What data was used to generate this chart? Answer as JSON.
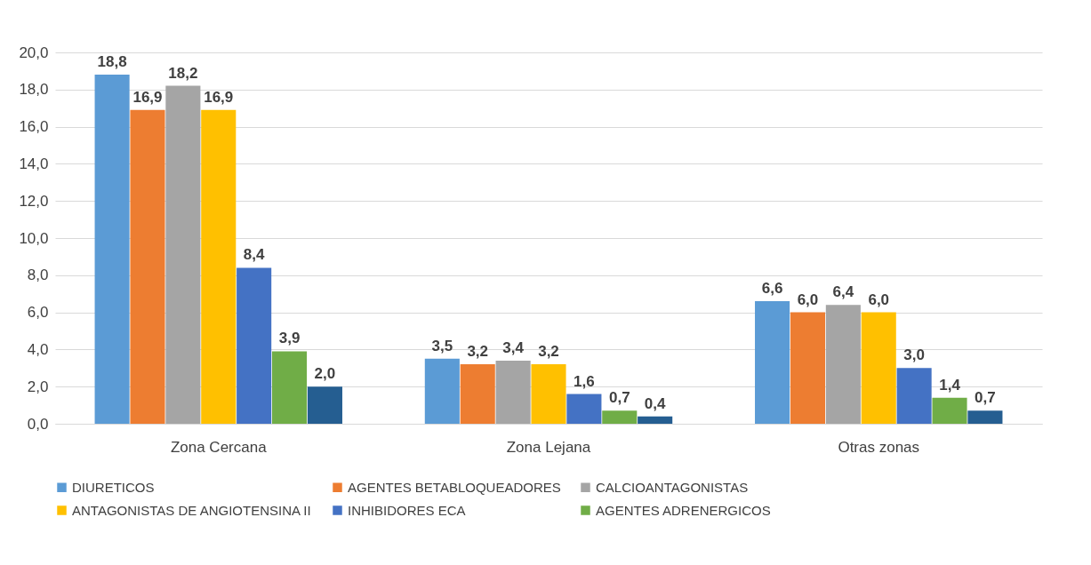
{
  "chart_data": {
    "type": "bar",
    "categories": [
      "Zona Cercana",
      "Zona Lejana",
      "Otras zonas"
    ],
    "series": [
      {
        "name": "DIURETICOS",
        "color": "#5b9bd5",
        "values": [
          18.8,
          3.5,
          6.6
        ],
        "value_labels": [
          "18,8",
          "3,5",
          "6,6"
        ]
      },
      {
        "name": "AGENTES BETABLOQUEADORES",
        "color": "#ed7d31",
        "values": [
          16.9,
          3.2,
          6.0
        ],
        "value_labels": [
          "16,9",
          "3,2",
          "6,0"
        ]
      },
      {
        "name": "CALCIOANTAGONISTAS",
        "color": "#a5a5a5",
        "values": [
          18.2,
          3.4,
          6.4
        ],
        "value_labels": [
          "18,2",
          "3,4",
          "6,4"
        ]
      },
      {
        "name": "ANTAGONISTAS DE ANGIOTENSINA II",
        "color": "#ffc000",
        "values": [
          16.9,
          3.2,
          6.0
        ],
        "value_labels": [
          "16,9",
          "3,2",
          "6,0"
        ]
      },
      {
        "name": "INHIBIDORES ECA",
        "color": "#4472c4",
        "values": [
          8.4,
          1.6,
          3.0
        ],
        "value_labels": [
          "8,4",
          "1,6",
          "3,0"
        ]
      },
      {
        "name": "AGENTES ADRENERGICOS",
        "color": "#70ad47",
        "values": [
          3.9,
          0.7,
          1.4
        ],
        "value_labels": [
          "3,9",
          "0,7",
          "1,4"
        ]
      },
      {
        "color": "#255e91",
        "values": [
          2.0,
          0.4,
          0.7
        ],
        "value_labels": [
          "2,0",
          "0,4",
          "0,7"
        ]
      }
    ],
    "ylim": [
      0,
      20
    ],
    "yticks": [
      {
        "value": 0,
        "label": "0,0"
      },
      {
        "value": 2,
        "label": "2,0"
      },
      {
        "value": 4,
        "label": "4,0"
      },
      {
        "value": 6,
        "label": "6,0"
      },
      {
        "value": 8,
        "label": "8,0"
      },
      {
        "value": 10,
        "label": "10,0"
      },
      {
        "value": 12,
        "label": "12,0"
      },
      {
        "value": 14,
        "label": "14,0"
      },
      {
        "value": 16,
        "label": "16,0"
      },
      {
        "value": 18,
        "label": "18,0"
      },
      {
        "value": 20,
        "label": "20,0"
      }
    ],
    "grid": "y",
    "legend": "bottom"
  }
}
